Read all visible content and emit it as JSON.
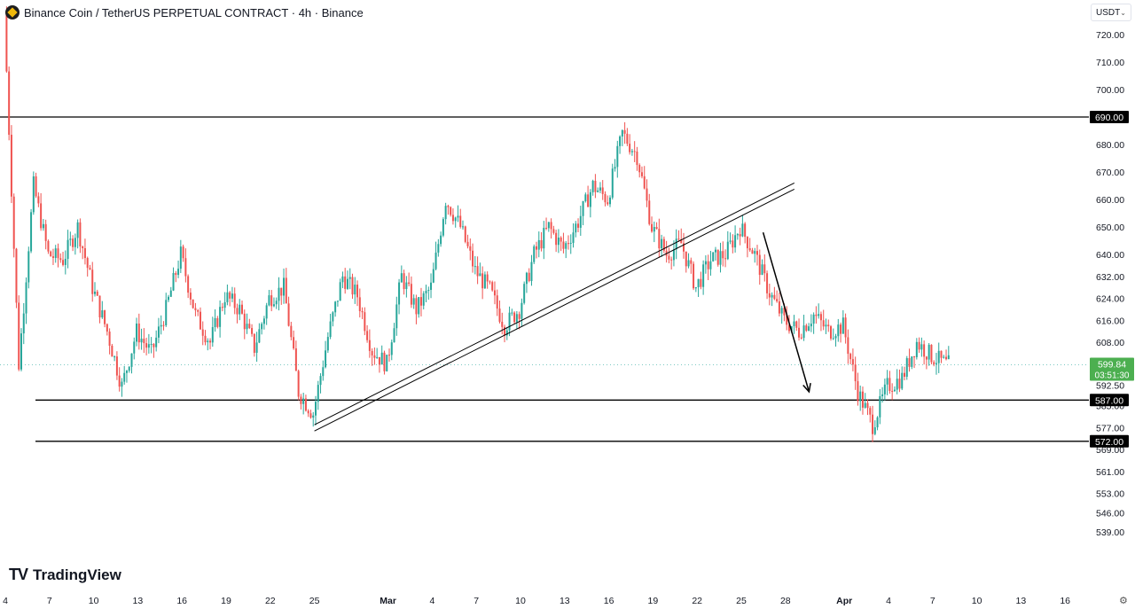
{
  "header": {
    "title": "Binance Coin / TetherUS PERPETUAL CONTRACT · 4h · Binance"
  },
  "currency_selector": {
    "value": "USDT"
  },
  "branding": {
    "name": "TradingView",
    "mark": "TV"
  },
  "colors": {
    "up": "#26a69a",
    "down": "#ef5350",
    "line": "#000000",
    "last_price_bg": "#4caf50"
  },
  "icons": {
    "currency": "chevron-down-icon",
    "settings": "gear-icon",
    "symbol": "bnb-logo-icon"
  },
  "chart_data": {
    "type": "candlestick",
    "interval": "4h",
    "y_axis": {
      "ticks": [
        "720.00",
        "710.00",
        "700.00",
        "680.00",
        "670.00",
        "660.00",
        "650.00",
        "640.00",
        "632.00",
        "624.00",
        "616.00",
        "608.00",
        "592.50",
        "585.00",
        "577.00",
        "569.00",
        "561.00",
        "553.00",
        "546.00",
        "539.00"
      ],
      "range": [
        536,
        728
      ]
    },
    "x_axis": {
      "labels": [
        "4",
        "7",
        "10",
        "13",
        "16",
        "19",
        "22",
        "25",
        "Mar",
        "4",
        "7",
        "10",
        "13",
        "16",
        "19",
        "22",
        "25",
        "28",
        "Apr",
        "4",
        "7",
        "10",
        "13",
        "16"
      ],
      "start_date": "2024-02-04",
      "label_dates": [
        "2024-02-04",
        "2024-02-07",
        "2024-02-10",
        "2024-02-13",
        "2024-02-16",
        "2024-02-19",
        "2024-02-22",
        "2024-02-25",
        "2024-03-01",
        "2024-03-04",
        "2024-03-07",
        "2024-03-10",
        "2024-03-13",
        "2024-03-16",
        "2024-03-19",
        "2024-03-22",
        "2024-03-25",
        "2024-03-28",
        "2024-04-01",
        "2024-04-04",
        "2024-04-07",
        "2024-04-10",
        "2024-04-13",
        "2024-04-16"
      ]
    },
    "last_price": {
      "value": "599.84",
      "countdown": "03:51:30"
    },
    "horizontal_levels": [
      {
        "price": 690,
        "label": "690.00"
      },
      {
        "price": 587,
        "label": "587.00"
      },
      {
        "price": 572,
        "label": "572.00"
      }
    ],
    "trendline_channel": {
      "from": {
        "date": "2024-02-25",
        "price": 578
      },
      "to": {
        "date": "2024-03-28",
        "price": 666
      }
    },
    "arrow": {
      "from": {
        "date": "2024-03-26",
        "price": 648
      },
      "to": {
        "date": "2024-03-29",
        "price": 590
      }
    },
    "price_path": [
      [
        "2024-02-04",
        728
      ],
      [
        "2024-02-05",
        600
      ],
      [
        "2024-02-06",
        665
      ],
      [
        "2024-02-07",
        640
      ],
      [
        "2024-02-08",
        638
      ],
      [
        "2024-02-09",
        650
      ],
      [
        "2024-02-10",
        628
      ],
      [
        "2024-02-11",
        612
      ],
      [
        "2024-02-12",
        592
      ],
      [
        "2024-02-13",
        612
      ],
      [
        "2024-02-14",
        604
      ],
      [
        "2024-02-15",
        620
      ],
      [
        "2024-02-16",
        640
      ],
      [
        "2024-02-17",
        618
      ],
      [
        "2024-02-18",
        608
      ],
      [
        "2024-02-19",
        625
      ],
      [
        "2024-02-20",
        620
      ],
      [
        "2024-02-21",
        606
      ],
      [
        "2024-02-22",
        624
      ],
      [
        "2024-02-23",
        628
      ],
      [
        "2024-02-24",
        590
      ],
      [
        "2024-02-25",
        582
      ],
      [
        "2024-02-26",
        610
      ],
      [
        "2024-02-27",
        632
      ],
      [
        "2024-02-28",
        625
      ],
      [
        "2024-02-29",
        605
      ],
      [
        "2024-03-01",
        600
      ],
      [
        "2024-03-02",
        632
      ],
      [
        "2024-03-03",
        620
      ],
      [
        "2024-03-04",
        628
      ],
      [
        "2024-03-05",
        660
      ],
      [
        "2024-03-06",
        650
      ],
      [
        "2024-03-07",
        634
      ],
      [
        "2024-03-08",
        627
      ],
      [
        "2024-03-09",
        614
      ],
      [
        "2024-03-10",
        620
      ],
      [
        "2024-03-11",
        640
      ],
      [
        "2024-03-12",
        650
      ],
      [
        "2024-03-13",
        642
      ],
      [
        "2024-03-14",
        652
      ],
      [
        "2024-03-15",
        665
      ],
      [
        "2024-03-16",
        660
      ],
      [
        "2024-03-17",
        684
      ],
      [
        "2024-03-18",
        676
      ],
      [
        "2024-03-19",
        650
      ],
      [
        "2024-03-20",
        640
      ],
      [
        "2024-03-21",
        644
      ],
      [
        "2024-03-22",
        628
      ],
      [
        "2024-03-23",
        638
      ],
      [
        "2024-03-24",
        640
      ],
      [
        "2024-03-25",
        650
      ],
      [
        "2024-03-26",
        640
      ],
      [
        "2024-03-27",
        626
      ],
      [
        "2024-03-28",
        616
      ],
      [
        "2024-03-29",
        612
      ],
      [
        "2024-03-30",
        618
      ],
      [
        "2024-03-31",
        612
      ],
      [
        "2024-04-01",
        614
      ],
      [
        "2024-04-02",
        590
      ],
      [
        "2024-04-03",
        578
      ],
      [
        "2024-04-04",
        592
      ],
      [
        "2024-04-05",
        595
      ],
      [
        "2024-04-06",
        608
      ],
      [
        "2024-04-07",
        603
      ],
      [
        "2024-04-08",
        600
      ]
    ]
  }
}
